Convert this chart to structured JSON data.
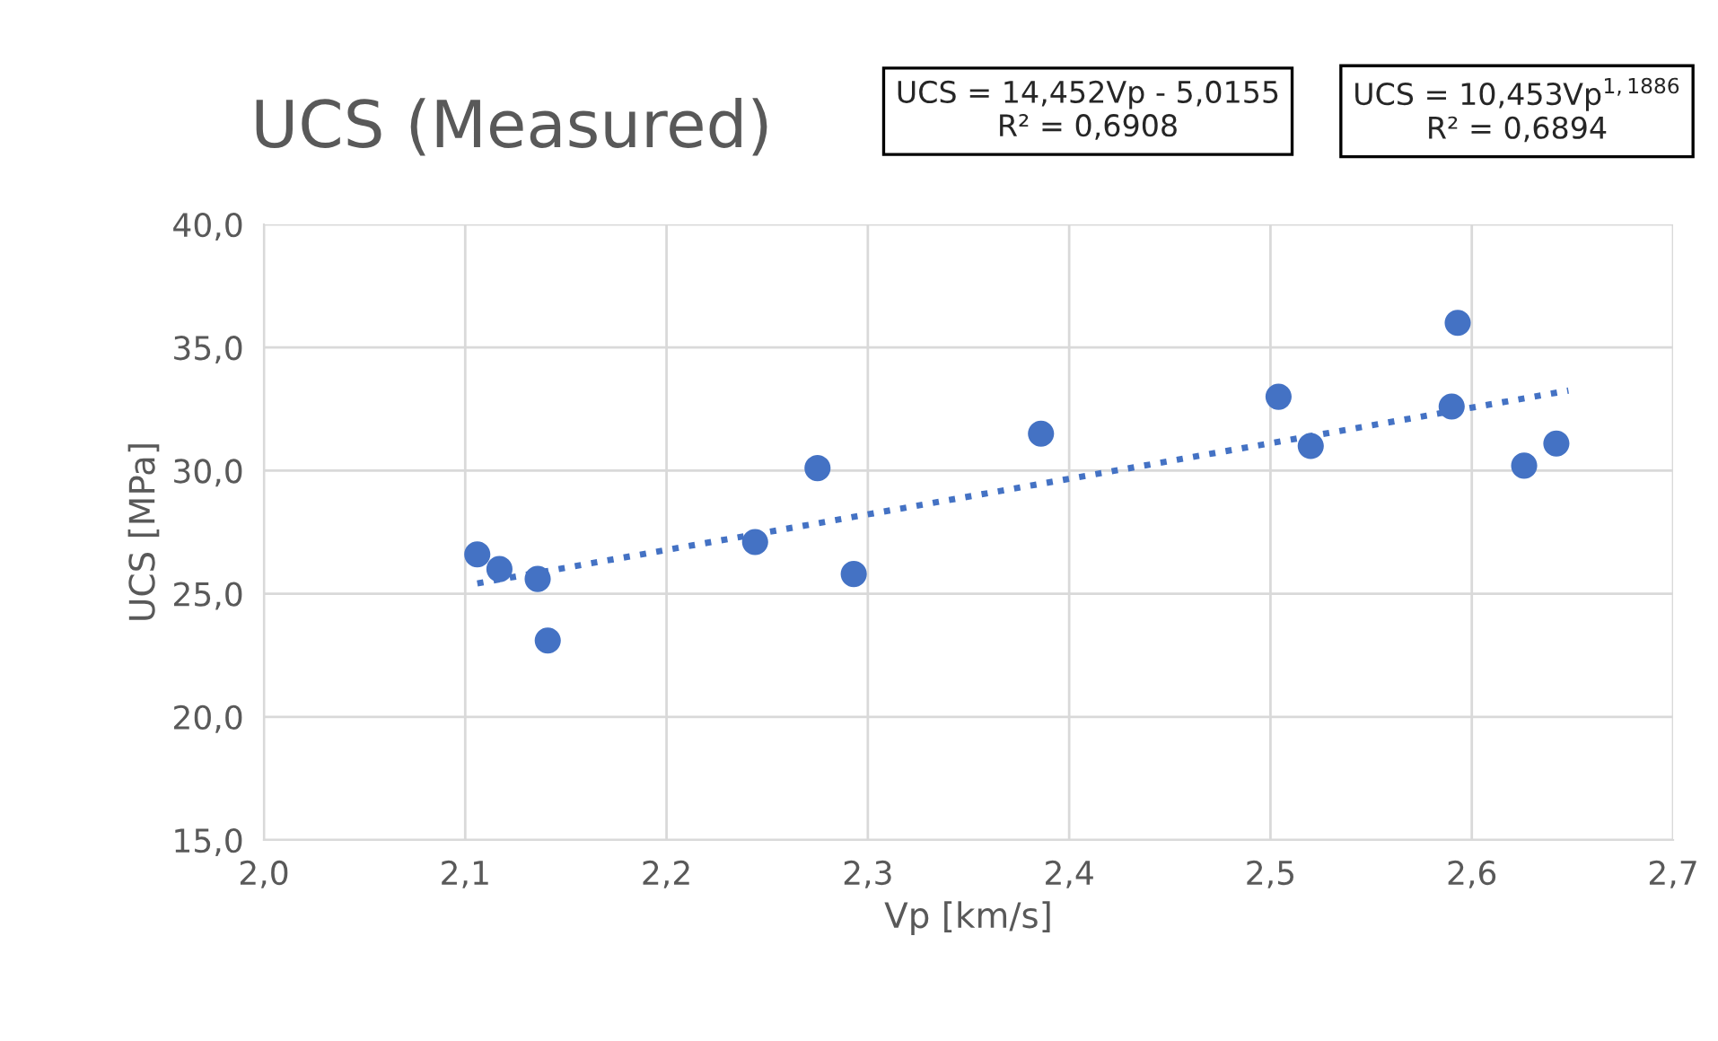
{
  "chart_data": {
    "type": "scatter",
    "title": "UCS (Measured)",
    "xlabel": "Vp [km/s]",
    "ylabel": "UCS [MPa]",
    "annotations": [
      "UCS = 14,452Vp - 5,0155\nR² = 0,6908",
      "UCS = 10,453Vp$^{1,1886}$\nR² = 0,6894"
    ],
    "series": [
      {
        "color": "#4472c4",
        "marker": "circle",
        "x": [
          2.106,
          2.117,
          2.136,
          2.141,
          2.244,
          2.275,
          2.293,
          2.386,
          2.504,
          2.52,
          2.59,
          2.593,
          2.626,
          2.642
        ],
        "values": [
          26.6,
          26.0,
          25.6,
          23.1,
          27.1,
          30.1,
          25.8,
          31.5,
          33.0,
          31.0,
          32.6,
          36.0,
          30.2,
          31.1
        ]
      },
      {
        "type": "line",
        "color": "#4472c4",
        "line_style": "dotted",
        "x": [
          2.106,
          2.648
        ],
        "values": [
          25.42,
          33.25
        ]
      }
    ],
    "xlim": [
      2.0,
      2.7
    ],
    "xticks": [
      {
        "value": 2.0,
        "label": "2,0"
      },
      {
        "value": 2.1,
        "label": "2,1"
      },
      {
        "value": 2.2,
        "label": "2,2"
      },
      {
        "value": 2.3,
        "label": "2,3"
      },
      {
        "value": 2.4,
        "label": "2,4"
      },
      {
        "value": 2.5,
        "label": "2,5"
      },
      {
        "value": 2.6,
        "label": "2,6"
      },
      {
        "value": 2.7,
        "label": "2,7"
      }
    ],
    "ylim": [
      15.0,
      40.0
    ],
    "yticks": [
      {
        "value": 15,
        "label": "15,0"
      },
      {
        "value": 20,
        "label": "20,0"
      },
      {
        "value": 25,
        "label": "25,0"
      },
      {
        "value": 30,
        "label": "30,0"
      },
      {
        "value": 35,
        "label": "35,0"
      },
      {
        "value": 40,
        "label": "40,0"
      }
    ],
    "grid": true
  }
}
